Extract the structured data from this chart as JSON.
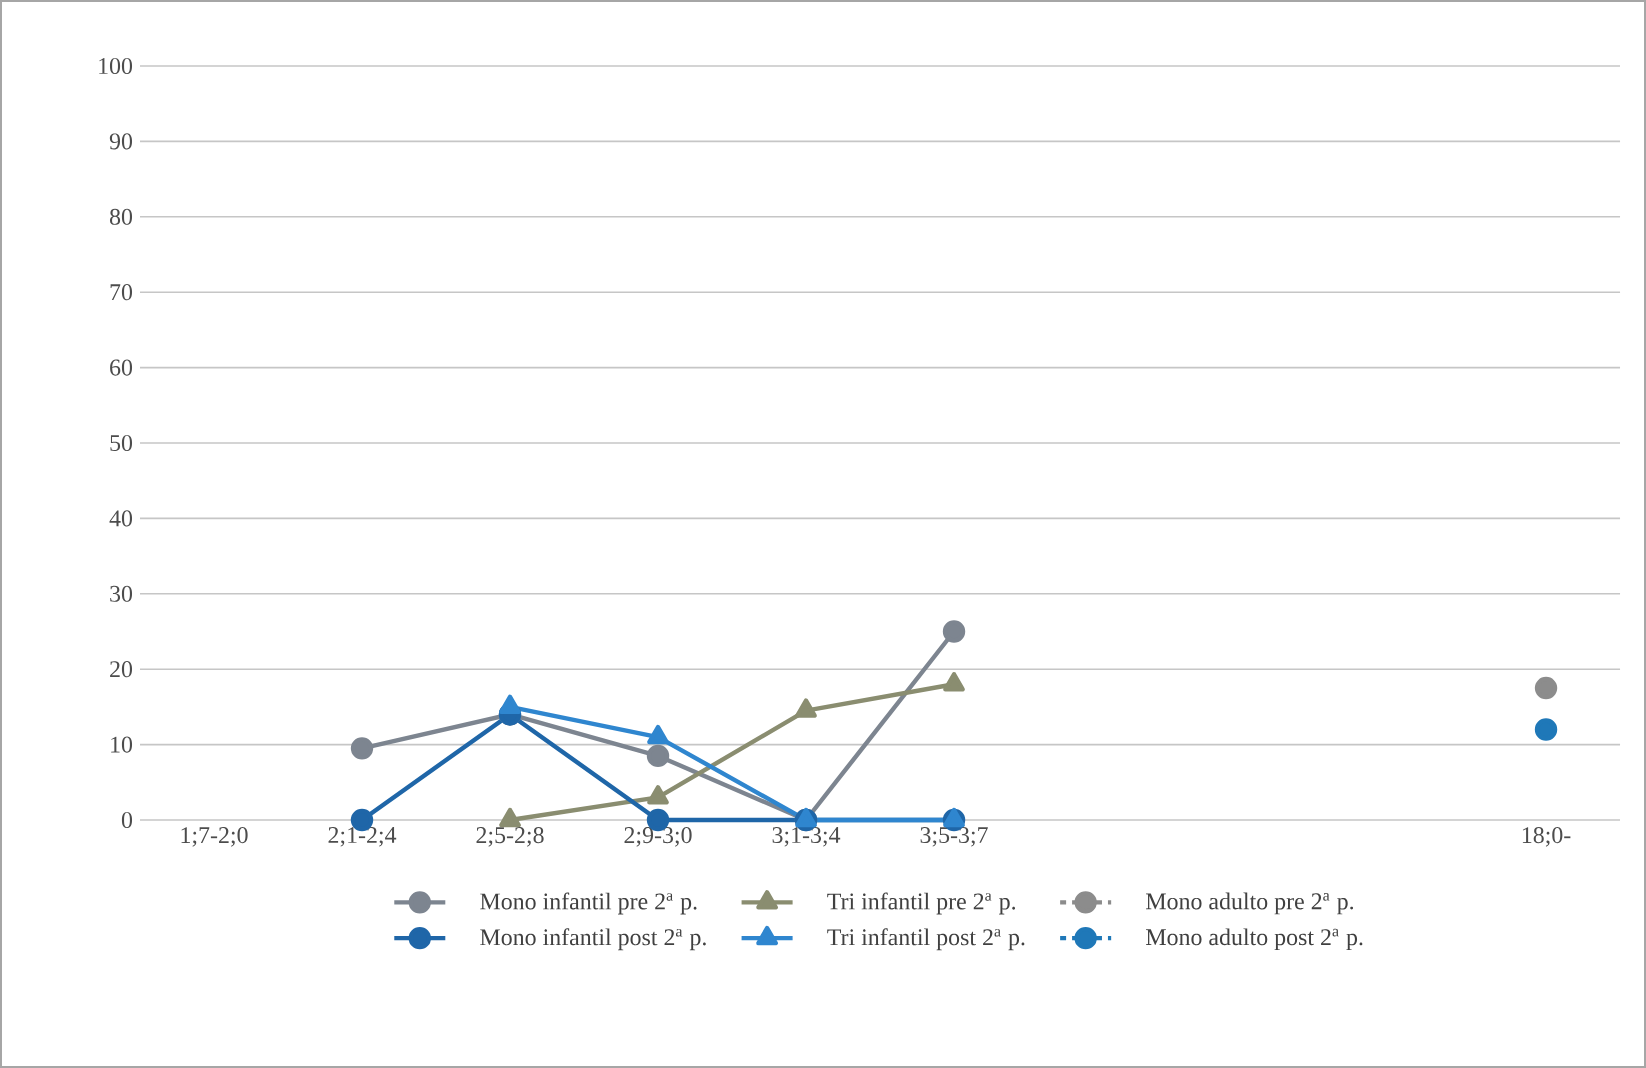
{
  "chart_data": {
    "type": "line",
    "categories": [
      "1;7-2;0",
      "2;1-2;4",
      "2;5-2;8",
      "2;9-3;0",
      "3;1-3;4",
      "3;5-3;7",
      null,
      null,
      null,
      "18;0-"
    ],
    "series": [
      {
        "name": "Mono infantil pre 2$^{a}$ p.",
        "color": "#7d8590",
        "marker": "circle",
        "line_style": "solid",
        "values": [
          null,
          9.5,
          14,
          8.5,
          0,
          25,
          null,
          null,
          null,
          null
        ]
      },
      {
        "name": "Tri infantil pre 2$^{a}$ p.",
        "color": "#8a8d70",
        "marker": "triangle",
        "line_style": "solid",
        "values": [
          null,
          null,
          0,
          3,
          14.5,
          18,
          null,
          null,
          null,
          null
        ]
      },
      {
        "name": "Mono adulto pre 2$^{a}$ p.",
        "color": "#8c8c8c",
        "marker": "circle",
        "line_style": "dashed",
        "values": [
          null,
          null,
          null,
          null,
          null,
          null,
          null,
          null,
          null,
          17.5
        ]
      },
      {
        "name": "Mono infantil post 2$^{a}$ p.",
        "color": "#1f66a8",
        "marker": "circle",
        "line_style": "solid",
        "values": [
          null,
          0,
          14,
          0,
          0,
          0,
          null,
          null,
          null,
          null
        ]
      },
      {
        "name": "Tri infantil post 2$^{a}$ p.",
        "color": "#2f86cf",
        "marker": "triangle",
        "line_style": "solid",
        "values": [
          null,
          null,
          15,
          11,
          0,
          0,
          null,
          null,
          null,
          null
        ]
      },
      {
        "name": "Mono adulto post 2$^{a}$ p.",
        "color": "#1f78b8",
        "marker": "circle",
        "line_style": "dashed",
        "values": [
          null,
          null,
          null,
          null,
          null,
          null,
          null,
          null,
          null,
          12
        ]
      }
    ],
    "ylim": [
      0,
      100
    ],
    "yticks": [
      0,
      10,
      20,
      30,
      40,
      50,
      60,
      70,
      80,
      90,
      100
    ],
    "grid": "y",
    "legend": "bottom"
  }
}
